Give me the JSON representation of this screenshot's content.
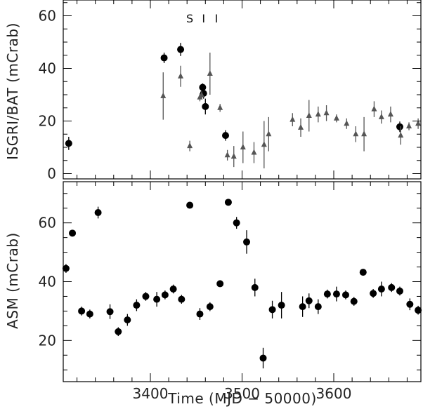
{
  "chart_data": [
    {
      "type": "scatter",
      "ylabel": "ISGRI/BAT (mCrab)",
      "xlim": [
        3305,
        3695
      ],
      "ylim": [
        -2,
        66
      ],
      "yticks": [
        0,
        20,
        40,
        60
      ],
      "annotations": [
        {
          "text": "S",
          "x": 3443
        },
        {
          "text": "I",
          "x": 3458
        },
        {
          "text": "I",
          "x": 3472
        }
      ],
      "series": [
        {
          "marker": "circle",
          "color": "#000000",
          "points": [
            {
              "x": 3311,
              "y": 11.5,
              "err": 2.5
            },
            {
              "x": 3415,
              "y": 44.0,
              "err": 2.0
            },
            {
              "x": 3433,
              "y": 47.2,
              "err": 2.5
            },
            {
              "x": 3457,
              "y": 32.8,
              "err": 1.5
            },
            {
              "x": 3458,
              "y": 30.5,
              "err": 2.0
            },
            {
              "x": 3460,
              "y": 25.5,
              "err": 3.0
            },
            {
              "x": 3482,
              "y": 14.5,
              "err": 2.0
            },
            {
              "x": 3672,
              "y": 17.8,
              "err": 2.0
            }
          ]
        },
        {
          "marker": "triangle",
          "color": "#555555",
          "points": [
            {
              "x": 3414,
              "y": 29.5,
              "err": 9.0
            },
            {
              "x": 3433,
              "y": 37.0,
              "err": 4.0
            },
            {
              "x": 3443,
              "y": 10.5,
              "err": 2.0
            },
            {
              "x": 3454,
              "y": 29.0,
              "err": 1.5
            },
            {
              "x": 3456,
              "y": 29.8,
              "err": 1.5
            },
            {
              "x": 3465,
              "y": 38.0,
              "err": 8.0
            },
            {
              "x": 3476,
              "y": 25.0,
              "err": 1.5
            },
            {
              "x": 3484,
              "y": 7.0,
              "err": 2.0
            },
            {
              "x": 3491,
              "y": 6.5,
              "err": 4.0
            },
            {
              "x": 3501,
              "y": 10.0,
              "err": 6.0
            },
            {
              "x": 3513,
              "y": 8.0,
              "err": 4.0
            },
            {
              "x": 3524,
              "y": 11.0,
              "err": 9.0
            },
            {
              "x": 3529,
              "y": 15.0,
              "err": 6.5
            },
            {
              "x": 3555,
              "y": 20.5,
              "err": 2.5
            },
            {
              "x": 3564,
              "y": 17.5,
              "err": 3.5
            },
            {
              "x": 3573,
              "y": 22.0,
              "err": 6.0
            },
            {
              "x": 3583,
              "y": 22.5,
              "err": 3.0
            },
            {
              "x": 3592,
              "y": 23.0,
              "err": 3.0
            },
            {
              "x": 3603,
              "y": 21.0,
              "err": 1.5
            },
            {
              "x": 3614,
              "y": 19.0,
              "err": 2.0
            },
            {
              "x": 3624,
              "y": 15.0,
              "err": 3.0
            },
            {
              "x": 3633,
              "y": 15.0,
              "err": 6.5
            },
            {
              "x": 3644,
              "y": 24.5,
              "err": 3.0
            },
            {
              "x": 3652,
              "y": 21.5,
              "err": 2.5
            },
            {
              "x": 3662,
              "y": 22.5,
              "err": 3.0
            },
            {
              "x": 3673,
              "y": 14.5,
              "err": 3.5
            },
            {
              "x": 3682,
              "y": 18.0,
              "err": 1.5
            },
            {
              "x": 3692,
              "y": 19.0,
              "err": 2.0
            }
          ]
        }
      ]
    },
    {
      "type": "scatter",
      "xlabel": "Time (MJD − 50000)",
      "ylabel": "ASM (mCrab)",
      "xlim": [
        3305,
        3695
      ],
      "ylim": [
        6,
        74
      ],
      "xticks": [
        3400,
        3500,
        3600
      ],
      "yticks": [
        20,
        40,
        60
      ],
      "series": [
        {
          "marker": "circle",
          "color": "#000000",
          "points": [
            {
              "x": 3308,
              "y": 44.5,
              "err": 1.5
            },
            {
              "x": 3315,
              "y": 56.5,
              "err": 1.0
            },
            {
              "x": 3325,
              "y": 30.0,
              "err": 1.5
            },
            {
              "x": 3334,
              "y": 29.0,
              "err": 1.5
            },
            {
              "x": 3343,
              "y": 63.5,
              "err": 2.0
            },
            {
              "x": 3356,
              "y": 29.8,
              "err": 2.5
            },
            {
              "x": 3365,
              "y": 23.0,
              "err": 1.5
            },
            {
              "x": 3375,
              "y": 27.0,
              "err": 2.0
            },
            {
              "x": 3385,
              "y": 32.0,
              "err": 2.0
            },
            {
              "x": 3395,
              "y": 35.0,
              "err": 1.5
            },
            {
              "x": 3407,
              "y": 34.0,
              "err": 2.5
            },
            {
              "x": 3416,
              "y": 35.5,
              "err": 1.5
            },
            {
              "x": 3425,
              "y": 37.5,
              "err": 1.5
            },
            {
              "x": 3434,
              "y": 34.0,
              "err": 1.5
            },
            {
              "x": 3443,
              "y": 66.0,
              "err": 1.0
            },
            {
              "x": 3454,
              "y": 29.0,
              "err": 2.0
            },
            {
              "x": 3465,
              "y": 31.5,
              "err": 1.5
            },
            {
              "x": 3476,
              "y": 39.3,
              "err": 1.0
            },
            {
              "x": 3485,
              "y": 67.0,
              "err": 1.0
            },
            {
              "x": 3494,
              "y": 60.0,
              "err": 2.0
            },
            {
              "x": 3505,
              "y": 53.5,
              "err": 4.0
            },
            {
              "x": 3514,
              "y": 38.0,
              "err": 3.0
            },
            {
              "x": 3523,
              "y": 14.0,
              "err": 3.5
            },
            {
              "x": 3533,
              "y": 30.5,
              "err": 3.0
            },
            {
              "x": 3543,
              "y": 32.0,
              "err": 4.5
            },
            {
              "x": 3566,
              "y": 31.5,
              "err": 3.5
            },
            {
              "x": 3573,
              "y": 33.5,
              "err": 2.5
            },
            {
              "x": 3583,
              "y": 31.5,
              "err": 2.5
            },
            {
              "x": 3593,
              "y": 35.8,
              "err": 1.5
            },
            {
              "x": 3603,
              "y": 35.8,
              "err": 2.5
            },
            {
              "x": 3613,
              "y": 35.5,
              "err": 1.5
            },
            {
              "x": 3622,
              "y": 33.3,
              "err": 1.5
            },
            {
              "x": 3632,
              "y": 43.2,
              "err": 1.0
            },
            {
              "x": 3643,
              "y": 36.0,
              "err": 1.5
            },
            {
              "x": 3652,
              "y": 37.5,
              "err": 2.5
            },
            {
              "x": 3663,
              "y": 38.0,
              "err": 1.5
            },
            {
              "x": 3672,
              "y": 36.8,
              "err": 1.5
            },
            {
              "x": 3683,
              "y": 32.3,
              "err": 2.0
            },
            {
              "x": 3692,
              "y": 30.3,
              "err": 1.5
            }
          ]
        }
      ]
    }
  ]
}
